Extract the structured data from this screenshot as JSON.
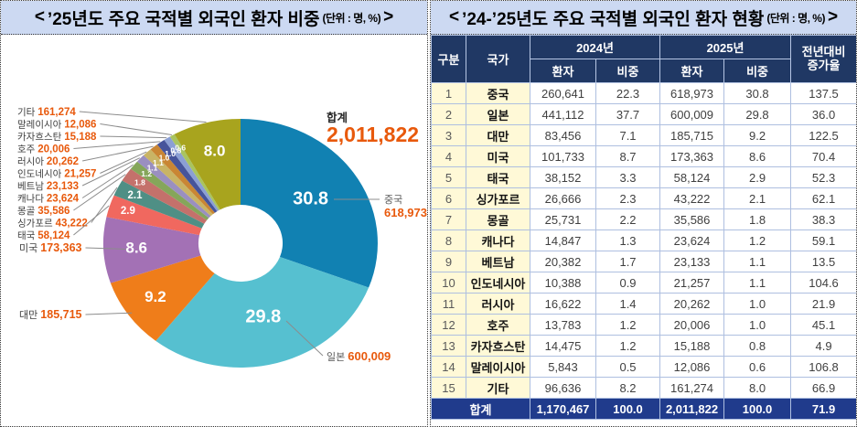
{
  "left_panel": {
    "bracket_open": "<",
    "title": "’25년도 주요 국적별 외국인 환자 비중",
    "unit": "(단위 : 명, %)",
    "bracket_close": ">"
  },
  "right_panel": {
    "bracket_open": "<",
    "title": "’24-’25년도 주요 국적별 외국인 환자 현황",
    "unit": "(단위 : 명, %)",
    "bracket_close": ">"
  },
  "colors": {
    "title_bg": "#ccd9f2",
    "header_navy": "#203864",
    "total_row_navy": "#203b8c",
    "yellow_cell": "#fff9d7",
    "value_orange": "#e8590c",
    "leader_line_gray": "#8c8c8c"
  },
  "chart_data": [
    {
      "type": "pie",
      "donut": true,
      "title": "’25년도 주요 국적별 외국인 환자 비중",
      "unit_note": "(단위 : 명, %)",
      "start_angle_deg": 0,
      "direction": "clockwise",
      "total": {
        "label": "합계",
        "value": "2,011,822"
      },
      "series": [
        {
          "name": "중국",
          "patients": "618,973",
          "share_pct": 30.8,
          "color": "#1181b2"
        },
        {
          "name": "일본",
          "patients": "600,009",
          "share_pct": 29.8,
          "color": "#56c0d0"
        },
        {
          "name": "대만",
          "patients": "185,715",
          "share_pct": 9.2,
          "color": "#ef7d1a"
        },
        {
          "name": "미국",
          "patients": "173,363",
          "share_pct": 8.6,
          "color": "#a371b5"
        },
        {
          "name": "태국",
          "patients": "58,124",
          "share_pct": 2.9,
          "color": "#f0685f"
        },
        {
          "name": "싱가포르",
          "patients": "43,222",
          "share_pct": 2.1,
          "color": "#4f8f85"
        },
        {
          "name": "몽골",
          "patients": "35,586",
          "share_pct": 1.8,
          "color": "#c4716b"
        },
        {
          "name": "캐나다",
          "patients": "23,624",
          "share_pct": 1.2,
          "color": "#85a65a"
        },
        {
          "name": "베트남",
          "patients": "23,133",
          "share_pct": 1.1,
          "color": "#9a8fc0"
        },
        {
          "name": "인도네시아",
          "patients": "21,257",
          "share_pct": 1.1,
          "color": "#c9b465"
        },
        {
          "name": "러시아",
          "patients": "20,262",
          "share_pct": 1.0,
          "color": "#c98634"
        },
        {
          "name": "호주",
          "patients": "20,006",
          "share_pct": 1.0,
          "color": "#46549b"
        },
        {
          "name": "카자흐스탄",
          "patients": "15,188",
          "share_pct": 0.8,
          "color": "#8b9fd4"
        },
        {
          "name": "말레이시아",
          "patients": "12,086",
          "share_pct": 0.6,
          "color": "#a9c45f"
        },
        {
          "name": "기타",
          "patients": "161,274",
          "share_pct": 8.0,
          "color": "#a8a41e"
        }
      ]
    },
    {
      "type": "table",
      "title": "’24-’25년도 주요 국적별 외국인 환자 현황",
      "unit_note": "(단위 : 명, %)",
      "header": {
        "rank": "구분",
        "country": "국가",
        "y2024": "2024년",
        "y2025": "2025년",
        "patients": "환자",
        "share": "비중",
        "growth_line1": "전년대비",
        "growth_line2": "증가율"
      },
      "rows": [
        [
          "1",
          "중국",
          "260,641",
          "22.3",
          "618,973",
          "30.8",
          "137.5"
        ],
        [
          "2",
          "일본",
          "441,112",
          "37.7",
          "600,009",
          "29.8",
          "36.0"
        ],
        [
          "3",
          "대만",
          "83,456",
          "7.1",
          "185,715",
          "9.2",
          "122.5"
        ],
        [
          "4",
          "미국",
          "101,733",
          "8.7",
          "173,363",
          "8.6",
          "70.4"
        ],
        [
          "5",
          "태국",
          "38,152",
          "3.3",
          "58,124",
          "2.9",
          "52.3"
        ],
        [
          "6",
          "싱가포르",
          "26,666",
          "2.3",
          "43,222",
          "2.1",
          "62.1"
        ],
        [
          "7",
          "몽골",
          "25,731",
          "2.2",
          "35,586",
          "1.8",
          "38.3"
        ],
        [
          "8",
          "캐나다",
          "14,847",
          "1.3",
          "23,624",
          "1.2",
          "59.1"
        ],
        [
          "9",
          "베트남",
          "20,382",
          "1.7",
          "23,133",
          "1.1",
          "13.5"
        ],
        [
          "10",
          "인도네시아",
          "10,388",
          "0.9",
          "21,257",
          "1.1",
          "104.6"
        ],
        [
          "11",
          "러시아",
          "16,622",
          "1.4",
          "20,262",
          "1.0",
          "21.9"
        ],
        [
          "12",
          "호주",
          "13,783",
          "1.2",
          "20,006",
          "1.0",
          "45.1"
        ],
        [
          "13",
          "카자흐스탄",
          "14,475",
          "1.2",
          "15,188",
          "0.8",
          "4.9"
        ],
        [
          "14",
          "말레이시아",
          "5,843",
          "0.5",
          "12,086",
          "0.6",
          "106.8"
        ],
        [
          "15",
          "기타",
          "96,636",
          "8.2",
          "161,274",
          "8.0",
          "66.9"
        ]
      ],
      "total_row": [
        "합계",
        "1,170,467",
        "100.0",
        "2,011,822",
        "100.0",
        "71.9"
      ]
    }
  ]
}
